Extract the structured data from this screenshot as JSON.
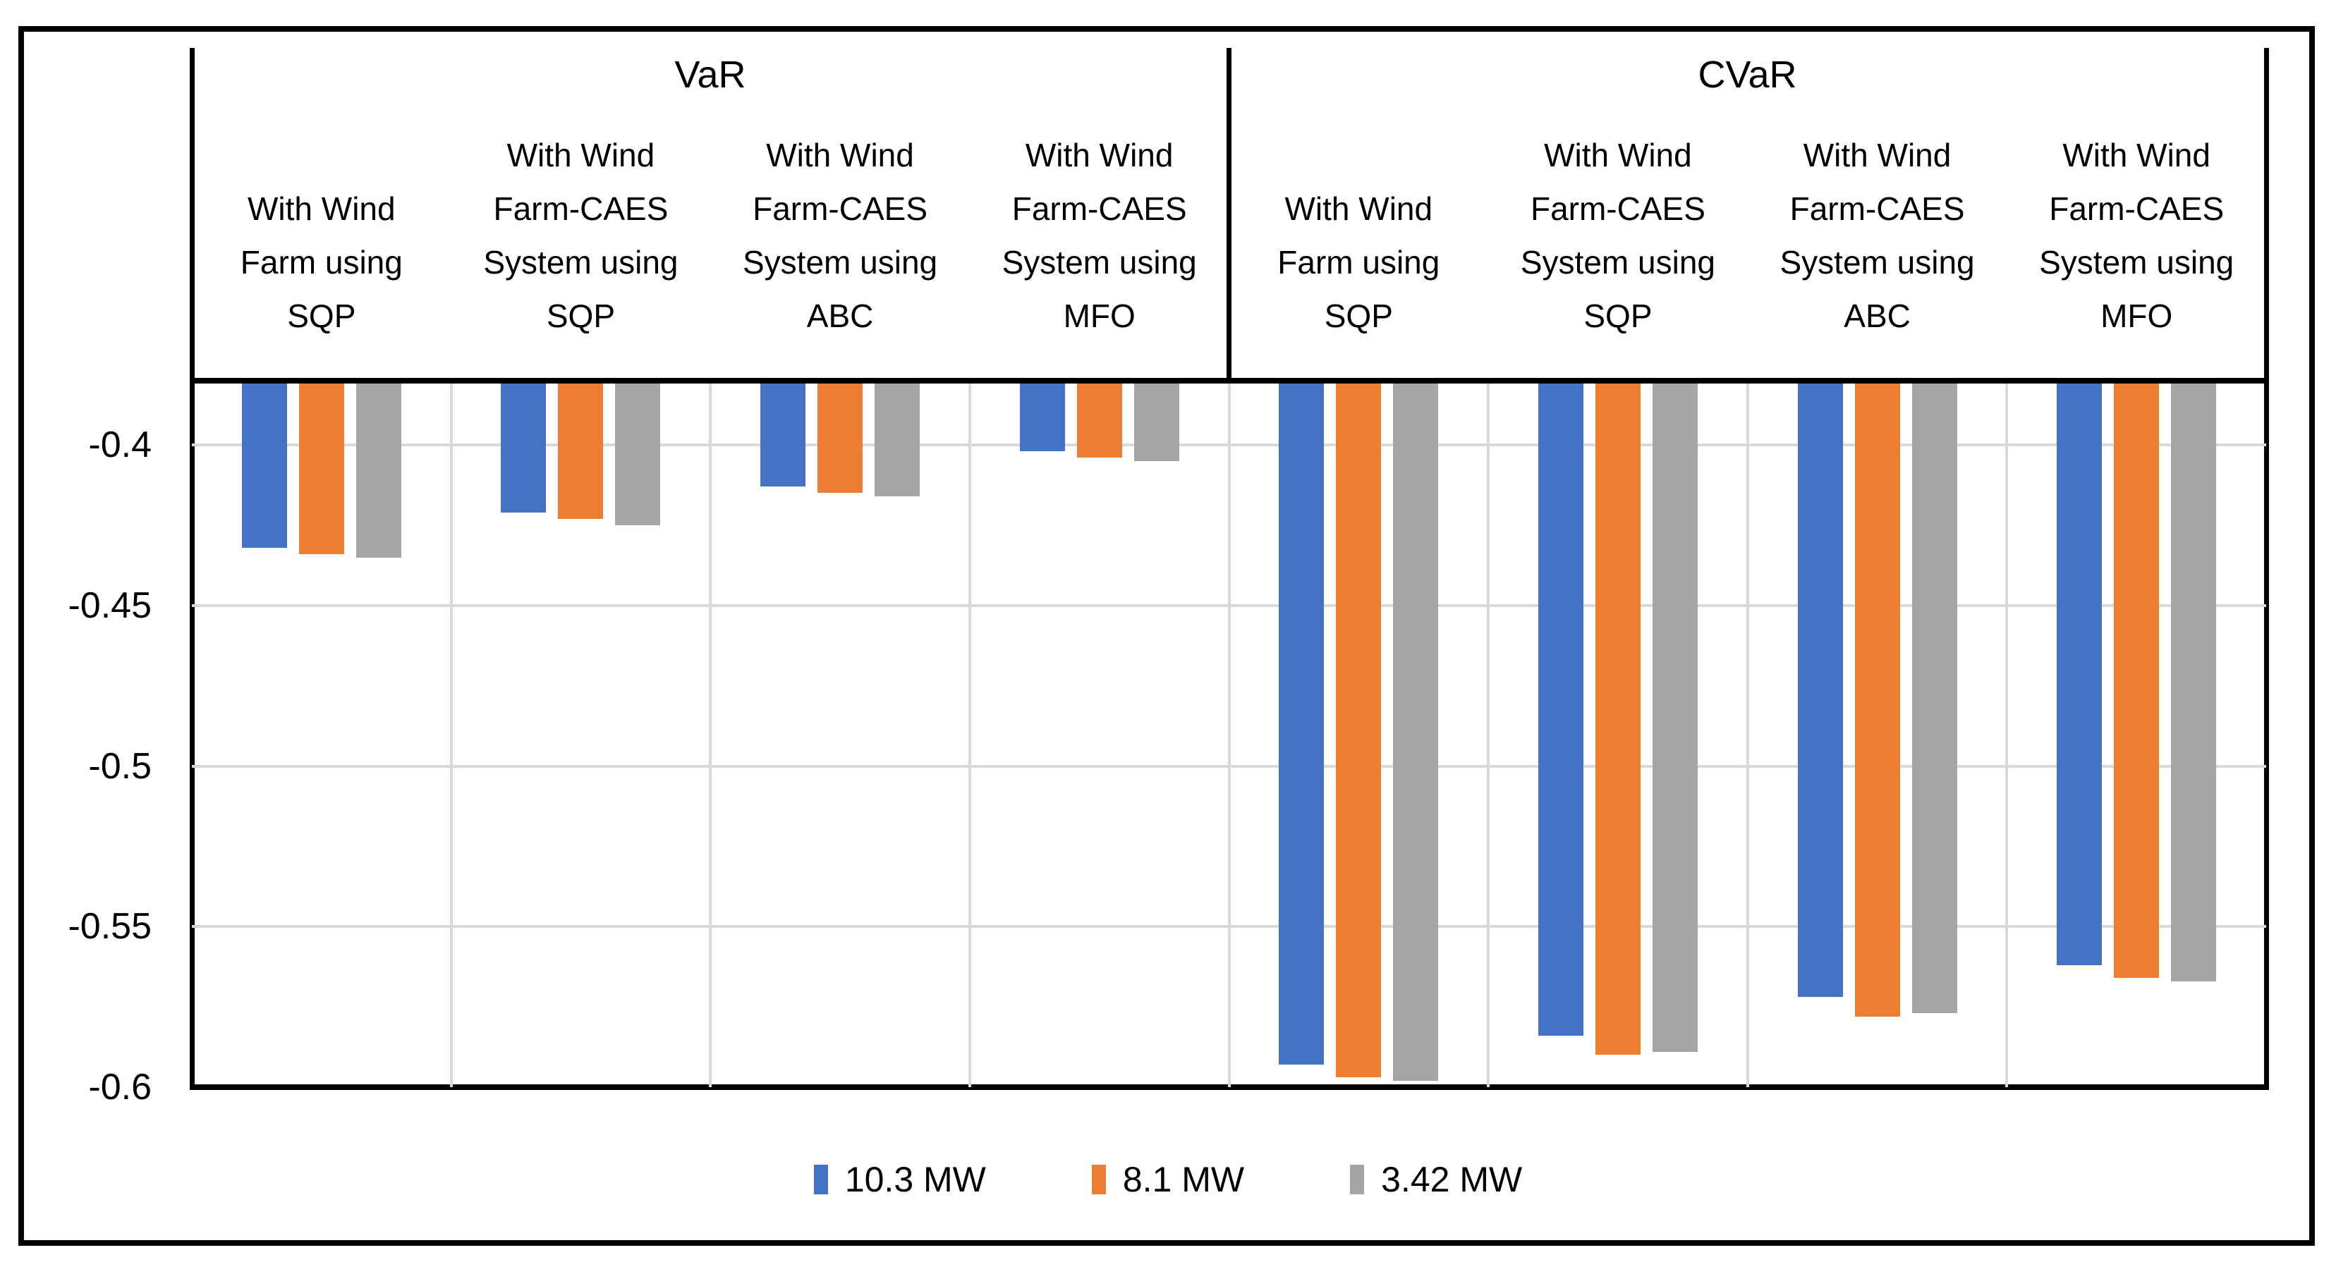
{
  "chart_data": {
    "type": "bar",
    "title": "",
    "sections": [
      {
        "label": "VaR",
        "categories": [
          {
            "label": "With Wind Farm using SQP",
            "lines": [
              "With Wind",
              "Farm using",
              "SQP"
            ]
          },
          {
            "label": "With Wind Farm-CAES System using SQP",
            "lines": [
              "With Wind",
              "Farm-CAES",
              "System using",
              "SQP"
            ]
          },
          {
            "label": "With Wind Farm-CAES System using ABC",
            "lines": [
              "With Wind",
              "Farm-CAES",
              "System using",
              "ABC"
            ]
          },
          {
            "label": "With Wind Farm-CAES System using MFO",
            "lines": [
              "With Wind",
              "Farm-CAES",
              "System using",
              "MFO"
            ]
          }
        ]
      },
      {
        "label": "CVaR",
        "categories": [
          {
            "label": "With Wind Farm using SQP",
            "lines": [
              "With Wind",
              "Farm using",
              "SQP"
            ]
          },
          {
            "label": "With Wind Farm-CAES System using SQP",
            "lines": [
              "With Wind",
              "Farm-CAES",
              "System using",
              "SQP"
            ]
          },
          {
            "label": "With Wind Farm-CAES System using ABC",
            "lines": [
              "With Wind",
              "Farm-CAES",
              "System using",
              "ABC"
            ]
          },
          {
            "label": "With Wind Farm-CAES System using MFO",
            "lines": [
              "With Wind",
              "Farm-CAES",
              "System using",
              "MFO"
            ]
          }
        ]
      }
    ],
    "categories": [
      "VaR - With Wind Farm using SQP",
      "VaR - With Wind Farm-CAES System using SQP",
      "VaR - With Wind Farm-CAES System using ABC",
      "VaR - With Wind Farm-CAES System using MFO",
      "CVaR - With Wind Farm using SQP",
      "CVaR - With Wind Farm-CAES System using SQP",
      "CVaR - With Wind Farm-CAES System using ABC",
      "CVaR - With Wind Farm-CAES System using MFO"
    ],
    "series": [
      {
        "name": "10.3 MW",
        "color": "#4472C4",
        "values": [
          -0.432,
          -0.421,
          -0.413,
          -0.402,
          -0.593,
          -0.584,
          -0.572,
          -0.562
        ]
      },
      {
        "name": "8.1 MW",
        "color": "#ED7D31",
        "values": [
          -0.434,
          -0.423,
          -0.415,
          -0.404,
          -0.597,
          -0.59,
          -0.578,
          -0.566
        ]
      },
      {
        "name": "3.42 MW",
        "color": "#A5A5A5",
        "values": [
          -0.435,
          -0.425,
          -0.416,
          -0.405,
          -0.598,
          -0.589,
          -0.577,
          -0.567
        ]
      }
    ],
    "y_axis": {
      "min": -0.6,
      "max": -0.38,
      "tick_values": [
        -0.4,
        -0.45,
        -0.5,
        -0.55,
        -0.6
      ],
      "tick_labels": [
        "-0.4",
        "-0.45",
        "-0.5",
        "-0.55",
        "-0.6"
      ]
    },
    "xlabel": "",
    "ylabel": "",
    "grid": true,
    "gridline_color": "#D9D9D9",
    "axis_color": "#000000",
    "text_color": "#000000",
    "legend": {
      "position": "bottom"
    }
  }
}
